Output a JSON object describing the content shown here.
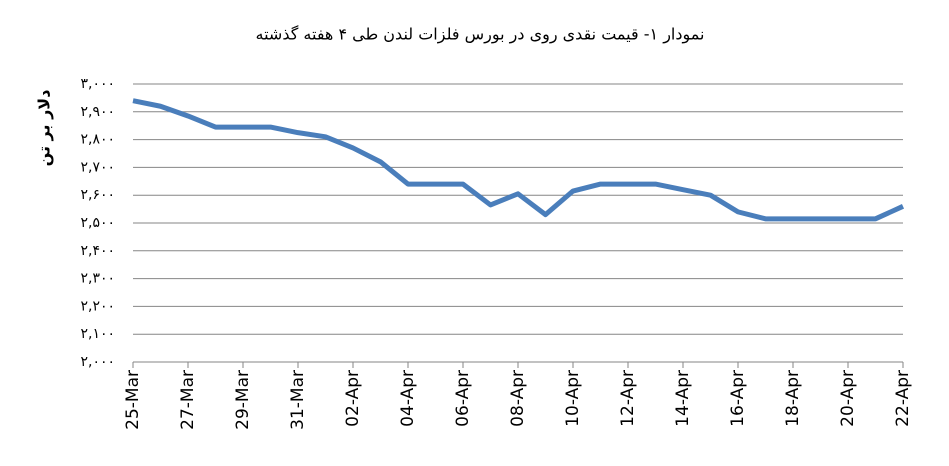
{
  "chart_data": {
    "type": "line",
    "title": "نمودار ۱- قیمت نقدی روی  در بورس فلزات لندن طی ۴ هفته گذشته",
    "y_label": "دلار بر تن",
    "categories": [
      "25-Mar",
      null,
      "27-Mar",
      null,
      "29-Mar",
      null,
      "31-Mar",
      null,
      "02-Apr",
      null,
      "04-Apr",
      null,
      "06-Apr",
      null,
      "08-Apr",
      null,
      "10-Apr",
      null,
      "12-Apr",
      null,
      "14-Apr",
      null,
      "16-Apr",
      null,
      "18-Apr",
      null,
      "20-Apr",
      null,
      "22-Apr"
    ],
    "series": [
      {
        "name": "zinc",
        "color": "#4a7ebb",
        "values": [
          2940,
          2920,
          2885,
          2845,
          2845,
          2845,
          2825,
          2810,
          2770,
          2720,
          2640,
          2640,
          2640,
          2565,
          2605,
          2530,
          2615,
          2640,
          2640,
          2640,
          2620,
          2600,
          2540,
          2515,
          2515,
          2515,
          2515,
          2515,
          2560
        ]
      }
    ],
    "ylim": [
      2000,
      3000
    ],
    "yticks": [
      {
        "value": 2000,
        "label": "۲,۰۰۰"
      },
      {
        "value": 2100,
        "label": "۲,۱۰۰"
      },
      {
        "value": 2200,
        "label": "۲,۲۰۰"
      },
      {
        "value": 2300,
        "label": "۲,۳۰۰"
      },
      {
        "value": 2400,
        "label": "۲,۴۰۰"
      },
      {
        "value": 2500,
        "label": "۲,۵۰۰"
      },
      {
        "value": 2600,
        "label": "۲,۶۰۰"
      },
      {
        "value": 2700,
        "label": "۲,۷۰۰"
      },
      {
        "value": 2800,
        "label": "۲,۸۰۰"
      },
      {
        "value": 2900,
        "label": "۲,۹۰۰"
      },
      {
        "value": 3000,
        "label": "۳,۰۰۰"
      }
    ],
    "grid": true
  }
}
